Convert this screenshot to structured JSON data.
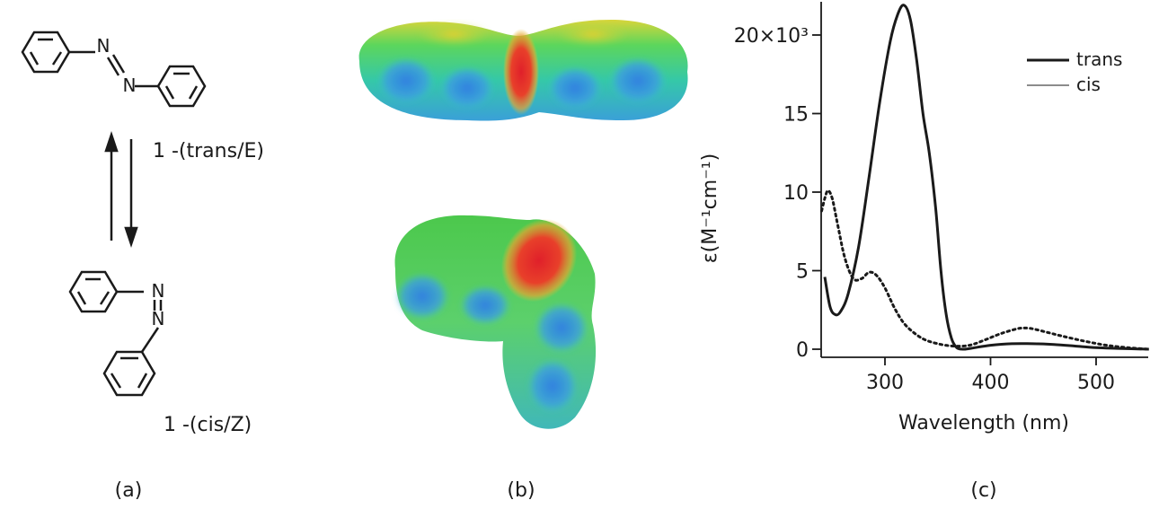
{
  "panel_a": {
    "trans_label": "1 -(trans/E)",
    "cis_label": "1 -(cis/Z)",
    "atom_n": "N",
    "caption": "(a)"
  },
  "panel_b": {
    "caption": "(b)"
  },
  "panel_c": {
    "caption": "(c)"
  },
  "chart_data": {
    "type": "line",
    "title": "",
    "xlabel": "Wavelength (nm)",
    "ylabel": "ε(M⁻¹cm⁻¹)",
    "xlim": [
      240,
      550
    ],
    "ylim": [
      -1,
      22
    ],
    "x_ticks": [
      300,
      400,
      500
    ],
    "y_ticks": [
      0,
      5,
      10,
      15,
      20
    ],
    "y_tick_labels": [
      "0",
      "5",
      "10",
      "15",
      "20×10³"
    ],
    "grid": false,
    "legend_position": "top-right",
    "series": [
      {
        "name": "trans",
        "style": "solid",
        "x": [
          243,
          248,
          253,
          258,
          265,
          275,
          285,
          295,
          305,
          312,
          318,
          324,
          330,
          336,
          342,
          348,
          353,
          358,
          363,
          368,
          375,
          385,
          400,
          420,
          440,
          460,
          480,
          500,
          520,
          550
        ],
        "y": [
          4.6,
          2.7,
          2.2,
          2.4,
          3.5,
          6.5,
          11.0,
          15.7,
          19.6,
          21.3,
          21.9,
          21.0,
          18.4,
          15.0,
          12.5,
          9.0,
          5.0,
          2.2,
          0.7,
          0.1,
          0.0,
          0.1,
          0.25,
          0.35,
          0.35,
          0.3,
          0.2,
          0.1,
          0.05,
          0.0
        ]
      },
      {
        "name": "cis",
        "style": "dotted",
        "x": [
          240,
          243,
          246,
          250,
          255,
          262,
          270,
          278,
          285,
          292,
          300,
          310,
          320,
          335,
          350,
          365,
          380,
          395,
          410,
          425,
          432,
          440,
          455,
          470,
          490,
          510,
          530,
          550
        ],
        "y": [
          8.8,
          9.6,
          10.1,
          9.6,
          8.0,
          5.8,
          4.5,
          4.5,
          4.9,
          4.7,
          3.9,
          2.5,
          1.5,
          0.7,
          0.35,
          0.2,
          0.25,
          0.6,
          1.0,
          1.3,
          1.35,
          1.3,
          1.05,
          0.8,
          0.5,
          0.25,
          0.1,
          0.0
        ]
      }
    ]
  }
}
